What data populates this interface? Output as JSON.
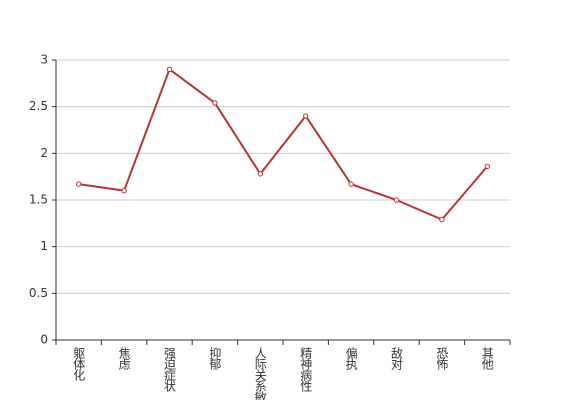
{
  "chart_data": {
    "type": "line",
    "categories": [
      "躯体化",
      "焦虑",
      "强迫症状",
      "抑郁",
      "人际关系敏感",
      "精神病性",
      "偏执",
      "敌对",
      "恐怖",
      "其他"
    ],
    "values": [
      1.67,
      1.6,
      2.9,
      2.54,
      1.78,
      2.4,
      1.67,
      1.5,
      1.29,
      1.86
    ],
    "color": "#b93331",
    "ylim": [
      0,
      3
    ],
    "yticks": [
      0,
      0.5,
      1,
      1.5,
      2,
      2.5,
      3
    ],
    "grid": true
  }
}
